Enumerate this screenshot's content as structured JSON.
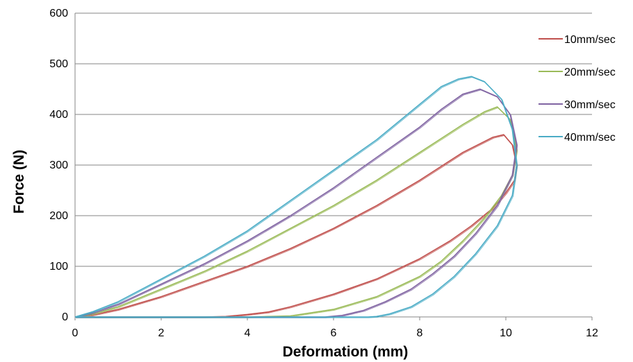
{
  "chart_data": {
    "type": "line",
    "title": "",
    "xlabel": "Deformation (mm)",
    "ylabel": "Force (N)",
    "xlim": [
      0,
      12
    ],
    "ylim": [
      0,
      600
    ],
    "xticks": [
      "0",
      "2",
      "4",
      "6",
      "8",
      "10",
      "12"
    ],
    "yticks": [
      "0",
      "100",
      "200",
      "300",
      "400",
      "500",
      "600"
    ],
    "grid": "horizontal",
    "legend_position": "right",
    "series": [
      {
        "name": "10mm/sec",
        "color": "#C0504D",
        "x": [
          0,
          0.4,
          1,
          2,
          3,
          4,
          5,
          6,
          7,
          8,
          9,
          9.7,
          9.95,
          10.15,
          10.25,
          10.2,
          10.0,
          9.7,
          9.2,
          8.7,
          8.0,
          7.0,
          6.0,
          5.0,
          4.5,
          4.0,
          3.5,
          3.0,
          2.0,
          1.0,
          0
        ],
        "y": [
          0,
          4,
          15,
          40,
          70,
          100,
          135,
          175,
          220,
          270,
          325,
          355,
          360,
          340,
          300,
          270,
          245,
          215,
          180,
          150,
          115,
          75,
          45,
          20,
          10,
          5,
          1,
          0,
          0,
          0,
          0
        ]
      },
      {
        "name": "20mm/sec",
        "color": "#9BBB59",
        "x": [
          0,
          0.4,
          1,
          2,
          3,
          4,
          5,
          6,
          7,
          8,
          9,
          9.5,
          9.8,
          10.1,
          10.25,
          10.15,
          9.9,
          9.5,
          9.0,
          8.5,
          8.0,
          7.0,
          6.0,
          5.0,
          4.0,
          2.0,
          0
        ],
        "y": [
          0,
          6,
          20,
          55,
          90,
          130,
          175,
          220,
          270,
          325,
          380,
          405,
          415,
          390,
          330,
          280,
          240,
          195,
          150,
          110,
          80,
          40,
          15,
          2,
          0,
          0,
          0
        ]
      },
      {
        "name": "30mm/sec",
        "color": "#8064A2",
        "x": [
          0,
          0.4,
          1,
          2,
          3,
          4,
          5,
          6,
          7,
          8,
          8.5,
          9.0,
          9.4,
          9.8,
          10.1,
          10.25,
          10.15,
          9.8,
          9.3,
          8.8,
          8.3,
          7.8,
          7.2,
          6.7,
          6.2,
          5.8,
          4.0,
          2.0,
          0
        ],
        "y": [
          0,
          8,
          25,
          65,
          105,
          150,
          200,
          255,
          315,
          375,
          410,
          440,
          450,
          435,
          400,
          340,
          280,
          220,
          165,
          120,
          85,
          55,
          30,
          13,
          3,
          0,
          0,
          0,
          0
        ]
      },
      {
        "name": "40mm/sec",
        "color": "#4BACC6",
        "x": [
          0,
          0.4,
          1,
          2,
          3,
          4,
          5,
          6,
          7,
          8,
          8.5,
          8.9,
          9.2,
          9.5,
          9.9,
          10.15,
          10.25,
          10.15,
          9.8,
          9.3,
          8.8,
          8.3,
          7.8,
          7.3,
          7.0,
          6.8,
          4.0,
          2.0,
          0
        ],
        "y": [
          0,
          10,
          30,
          75,
          120,
          170,
          230,
          290,
          350,
          420,
          455,
          470,
          475,
          465,
          430,
          370,
          300,
          240,
          180,
          125,
          80,
          45,
          20,
          6,
          1,
          0,
          0,
          0,
          0
        ]
      }
    ]
  }
}
